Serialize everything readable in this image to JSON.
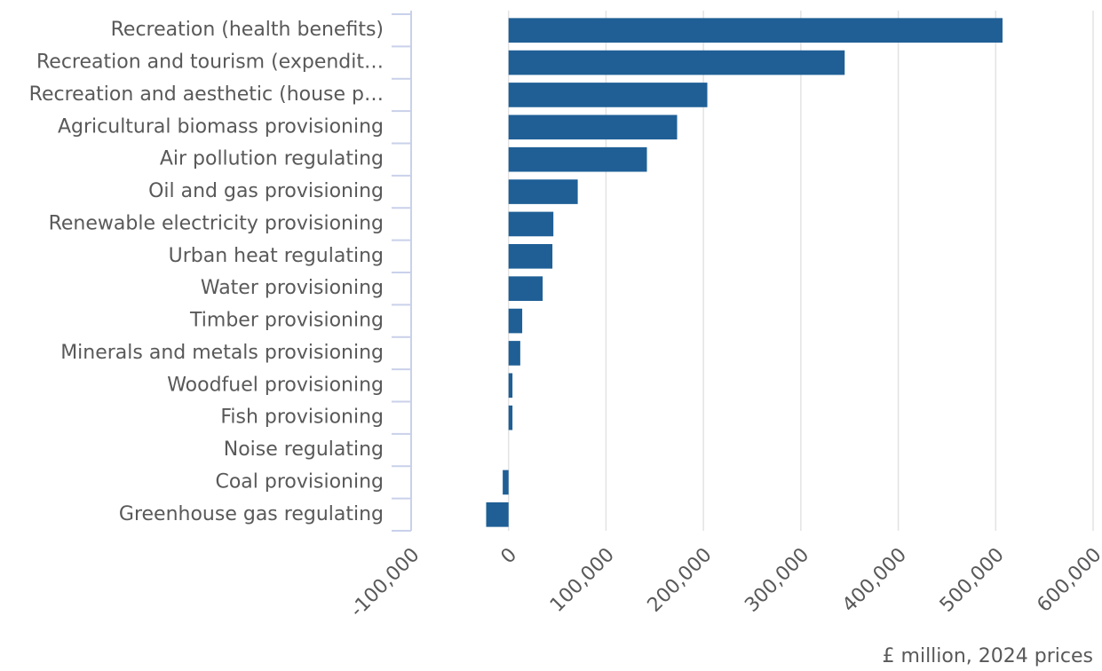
{
  "chart_data": {
    "type": "bar",
    "orientation": "horizontal",
    "x_label": "£ million, 2024 prices",
    "categories": [
      "Recreation (health benefits)",
      "Recreation and tourism (expendit…",
      "Recreation and aesthetic (house p…",
      "Agricultural biomass provisioning",
      "Air pollution regulating",
      "Oil and gas provisioning",
      "Renewable electricity provisioning",
      "Urban heat regulating",
      "Water provisioning",
      "Timber provisioning",
      "Minerals and metals provisioning",
      "Woodfuel provisioning",
      "Fish provisioning",
      "Noise regulating",
      "Coal provisioning",
      "Greenhouse gas regulating"
    ],
    "values": [
      507000,
      345000,
      204000,
      173000,
      142000,
      71000,
      46000,
      45000,
      35000,
      14000,
      12000,
      4000,
      4000,
      0,
      -6000,
      -23000
    ],
    "color": "#1f5f96",
    "xlim": [
      -100000,
      600000
    ],
    "xticks": [
      {
        "value": -100000,
        "label": "-100,000"
      },
      0,
      {
        "value": 100000,
        "label": "100,000"
      },
      {
        "value": 200000,
        "label": "200,000"
      },
      {
        "value": 300000,
        "label": "300,000"
      },
      {
        "value": 400000,
        "label": "400,000"
      },
      {
        "value": 500000,
        "label": "500,000"
      },
      {
        "value": 600000,
        "label": "600,000"
      }
    ],
    "grid": true
  }
}
